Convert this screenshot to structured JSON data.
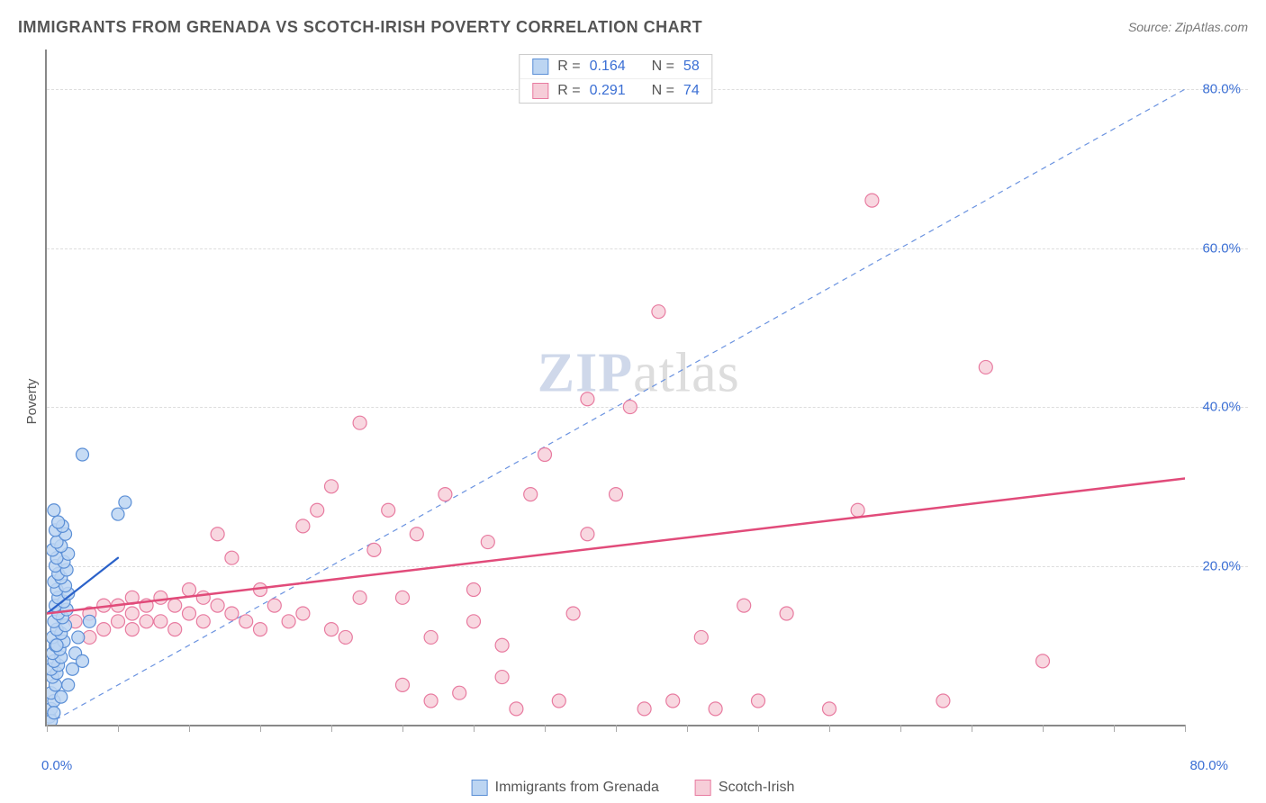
{
  "title": "IMMIGRANTS FROM GRENADA VS SCOTCH-IRISH POVERTY CORRELATION CHART",
  "source_label": "Source:",
  "source_name": "ZipAtlas.com",
  "y_axis_label": "Poverty",
  "watermark_bold": "ZIP",
  "watermark_rest": "atlas",
  "chart": {
    "type": "scatter",
    "xlim": [
      0,
      80
    ],
    "ylim": [
      0,
      85
    ],
    "x_tick_positions": [
      0,
      5,
      10,
      15,
      20,
      25,
      30,
      35,
      40,
      45,
      50,
      55,
      60,
      65,
      70,
      75,
      80
    ],
    "x_tick_labels": {
      "0": "0.0%",
      "80": "80.0%"
    },
    "y_ticks": [
      20,
      40,
      60,
      80
    ],
    "y_tick_labels": [
      "20.0%",
      "40.0%",
      "60.0%",
      "80.0%"
    ],
    "background_color": "#ffffff",
    "grid_color": "#dddddd",
    "axis_color": "#888888",
    "tick_label_color": "#3b6fd4",
    "reference_line": {
      "dash": "6,5",
      "color": "#6b93e0",
      "width": 1.2
    },
    "series": [
      {
        "name": "Immigrants from Grenada",
        "marker_fill": "#bcd5f2",
        "marker_stroke": "#5b8fd6",
        "marker_opacity": 0.85,
        "marker_radius": 7,
        "trend_line": {
          "color": "#2b62c9",
          "width": 2.2,
          "x1": 0,
          "y1": 14,
          "x2": 5,
          "y2": 21
        },
        "R": "0.164",
        "N": "58",
        "points": [
          [
            0.2,
            1.0
          ],
          [
            0.3,
            2.0
          ],
          [
            0.5,
            3.0
          ],
          [
            0.3,
            4.0
          ],
          [
            0.6,
            5.0
          ],
          [
            0.4,
            6.0
          ],
          [
            0.7,
            6.5
          ],
          [
            0.3,
            7.0
          ],
          [
            0.8,
            7.5
          ],
          [
            0.5,
            8.0
          ],
          [
            1.0,
            8.5
          ],
          [
            0.4,
            9.0
          ],
          [
            0.9,
            9.5
          ],
          [
            0.6,
            10.0
          ],
          [
            1.2,
            10.5
          ],
          [
            0.4,
            11.0
          ],
          [
            1.0,
            11.5
          ],
          [
            0.7,
            12.0
          ],
          [
            1.3,
            12.5
          ],
          [
            0.5,
            13.0
          ],
          [
            1.1,
            13.5
          ],
          [
            0.8,
            14.0
          ],
          [
            1.4,
            14.5
          ],
          [
            0.6,
            15.0
          ],
          [
            1.2,
            15.5
          ],
          [
            0.8,
            16.0
          ],
          [
            1.5,
            16.5
          ],
          [
            0.7,
            17.0
          ],
          [
            1.3,
            17.5
          ],
          [
            0.5,
            18.0
          ],
          [
            1.0,
            18.5
          ],
          [
            0.8,
            19.0
          ],
          [
            1.4,
            19.5
          ],
          [
            0.6,
            20.0
          ],
          [
            1.2,
            20.5
          ],
          [
            0.7,
            21.0
          ],
          [
            1.5,
            21.5
          ],
          [
            0.4,
            22.0
          ],
          [
            1.0,
            22.5
          ],
          [
            0.7,
            23.0
          ],
          [
            1.3,
            24.0
          ],
          [
            0.6,
            24.5
          ],
          [
            1.1,
            25.0
          ],
          [
            0.8,
            25.5
          ],
          [
            5.0,
            26.5
          ],
          [
            0.5,
            27.0
          ],
          [
            5.5,
            28.0
          ],
          [
            0.7,
            10.0
          ],
          [
            2.0,
            9.0
          ],
          [
            1.8,
            7.0
          ],
          [
            2.2,
            11.0
          ],
          [
            1.5,
            5.0
          ],
          [
            2.5,
            8.0
          ],
          [
            3.0,
            13.0
          ],
          [
            2.5,
            34.0
          ],
          [
            0.3,
            0.5
          ],
          [
            0.5,
            1.5
          ],
          [
            1.0,
            3.5
          ]
        ]
      },
      {
        "name": "Scotch-Irish",
        "marker_fill": "#f6cdd8",
        "marker_stroke": "#e87ba0",
        "marker_opacity": 0.8,
        "marker_radius": 7.5,
        "trend_line": {
          "color": "#e14b7a",
          "width": 2.5,
          "x1": 0,
          "y1": 14,
          "x2": 80,
          "y2": 31
        },
        "R": "0.291",
        "N": "74",
        "points": [
          [
            2,
            13
          ],
          [
            3,
            14
          ],
          [
            4,
            12
          ],
          [
            5,
            15
          ],
          [
            5,
            13
          ],
          [
            6,
            14
          ],
          [
            6,
            12
          ],
          [
            7,
            15
          ],
          [
            7,
            13
          ],
          [
            8,
            16
          ],
          [
            8,
            13
          ],
          [
            9,
            15
          ],
          [
            9,
            12
          ],
          [
            10,
            17
          ],
          [
            10,
            14
          ],
          [
            11,
            16
          ],
          [
            11,
            13
          ],
          [
            12,
            15
          ],
          [
            12,
            24
          ],
          [
            13,
            14
          ],
          [
            13,
            21
          ],
          [
            14,
            13
          ],
          [
            15,
            17
          ],
          [
            15,
            12
          ],
          [
            16,
            15
          ],
          [
            17,
            13
          ],
          [
            18,
            25
          ],
          [
            18,
            14
          ],
          [
            19,
            27
          ],
          [
            20,
            12
          ],
          [
            20,
            30
          ],
          [
            21,
            11
          ],
          [
            22,
            16
          ],
          [
            22,
            38
          ],
          [
            23,
            22
          ],
          [
            24,
            27
          ],
          [
            25,
            5
          ],
          [
            25,
            16
          ],
          [
            26,
            24
          ],
          [
            27,
            3
          ],
          [
            27,
            11
          ],
          [
            28,
            29
          ],
          [
            29,
            4
          ],
          [
            30,
            13
          ],
          [
            30,
            17
          ],
          [
            31,
            23
          ],
          [
            32,
            6
          ],
          [
            32,
            10
          ],
          [
            33,
            2
          ],
          [
            34,
            29
          ],
          [
            35,
            34
          ],
          [
            36,
            3
          ],
          [
            37,
            14
          ],
          [
            38,
            41
          ],
          [
            38,
            24
          ],
          [
            40,
            29
          ],
          [
            41,
            40
          ],
          [
            42,
            2
          ],
          [
            43,
            52
          ],
          [
            44,
            3
          ],
          [
            46,
            11
          ],
          [
            47,
            2
          ],
          [
            49,
            15
          ],
          [
            50,
            3
          ],
          [
            52,
            14
          ],
          [
            55,
            2
          ],
          [
            57,
            27
          ],
          [
            58,
            66
          ],
          [
            63,
            3
          ],
          [
            66,
            45
          ],
          [
            70,
            8
          ],
          [
            3,
            11
          ],
          [
            4,
            15
          ],
          [
            6,
            16
          ]
        ]
      }
    ]
  },
  "legend_stats_labels": {
    "R": "R =",
    "N": "N ="
  }
}
